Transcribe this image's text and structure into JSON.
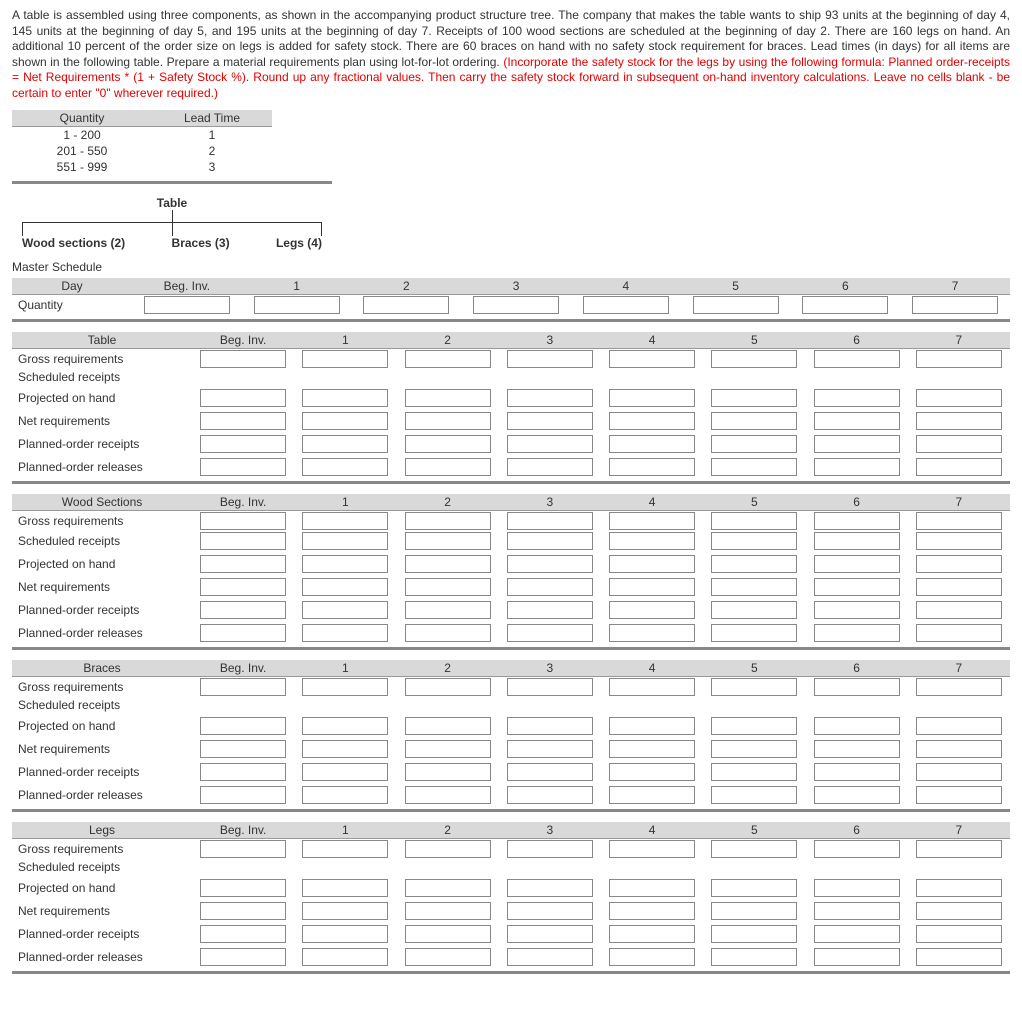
{
  "problem": {
    "main_text": "A table is assembled using three components, as shown in the accompanying product structure tree. The company that makes the table wants to ship 93 units at the beginning of day 4, 145 units at the beginning of day 5, and 195 units at the beginning of day 7. Receipts of 100 wood sections are scheduled at the beginning of day 2. There are 160 legs on hand. An additional 10 percent of the order size on legs is added for safety stock. There are 60 braces on hand with no safety stock requirement for braces. Lead times (in days) for all items are shown in the following table. Prepare a material requirements plan using lot-for-lot ordering. ",
    "red_text": "(Incorporate the safety stock for the legs by using the following formula: Planned order-receipts = Net Requirements * (1 + Safety Stock %). Round up any fractional values. Then carry the safety stock forward in subsequent on-hand inventory calculations. Leave no cells blank - be certain to enter \"0\" wherever required.)"
  },
  "leadtime": {
    "headers": [
      "Quantity",
      "Lead Time"
    ],
    "rows": [
      [
        "1 - 200",
        "1"
      ],
      [
        "201 - 550",
        "2"
      ],
      [
        "551 - 999",
        "3"
      ]
    ]
  },
  "tree": {
    "top": "Table",
    "children": [
      "Wood sections (2)",
      "Braces (3)",
      "Legs (4)"
    ]
  },
  "master": {
    "title": "Master Schedule",
    "headers": [
      "Day",
      "Beg. Inv.",
      "1",
      "2",
      "3",
      "4",
      "5",
      "6",
      "7"
    ],
    "row_label": "Quantity"
  },
  "mrp_sections": [
    {
      "title": "Table"
    },
    {
      "title": "Wood Sections"
    },
    {
      "title": "Braces"
    },
    {
      "title": "Legs"
    }
  ],
  "mrp_headers_rest": [
    "Beg. Inv.",
    "1",
    "2",
    "3",
    "4",
    "5",
    "6",
    "7"
  ],
  "mrp_row_labels": [
    "Gross requirements",
    "Scheduled receipts",
    "Projected on hand",
    "Net requirements",
    "Planned-order receipts",
    "Planned-order releases"
  ]
}
